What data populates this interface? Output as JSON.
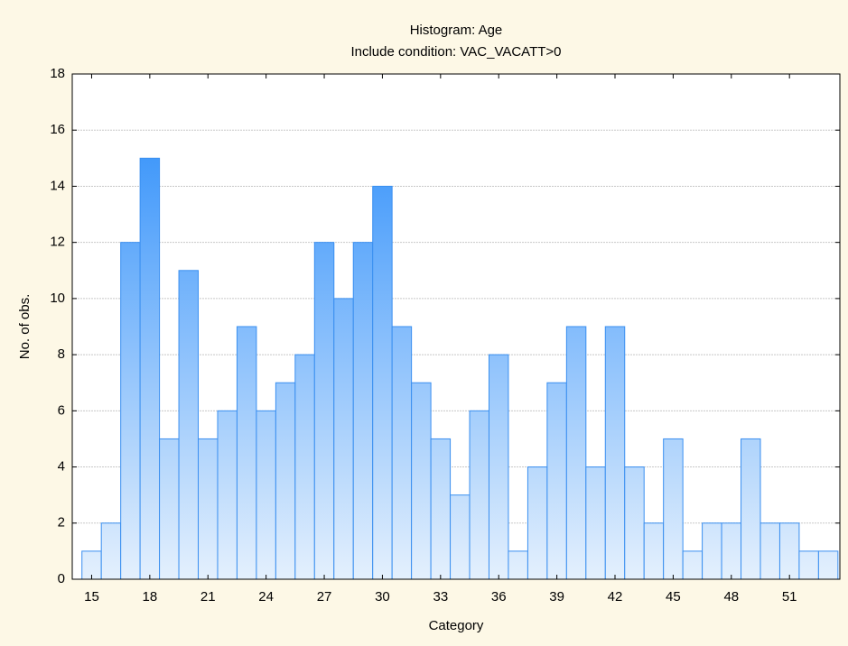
{
  "chart_data": {
    "type": "histogram",
    "title": "Histogram: Age",
    "subtitle": "Include condition: VAC_VACATT>0",
    "x_label": "Category",
    "y_label": "No. of obs.",
    "bins": [
      14.5,
      15.5,
      16.5,
      17.5,
      18.5,
      19.5,
      20.5,
      21.5,
      22.5,
      23.5,
      24.5,
      25.5,
      26.5,
      27.5,
      28.5,
      29.5,
      30.5,
      31.5,
      32.5,
      33.5,
      34.5,
      35.5,
      36.5,
      37.5,
      38.5,
      39.5,
      40.5,
      41.5,
      42.5,
      43.5,
      44.5,
      45.5,
      46.5,
      47.5,
      48.5,
      49.5,
      50.5,
      51.5,
      52.5,
      53.5
    ],
    "counts": [
      1,
      2,
      12,
      15,
      5,
      11,
      5,
      6,
      9,
      6,
      7,
      8,
      12,
      10,
      12,
      14,
      9,
      7,
      5,
      3,
      6,
      8,
      1,
      4,
      7,
      9,
      4,
      9,
      4,
      2,
      5,
      1,
      2,
      2,
      5,
      2,
      2,
      1,
      1
    ],
    "color": "#3a8ff0",
    "xlim": [
      14,
      53.6
    ],
    "xticks": [
      15,
      18,
      21,
      24,
      27,
      30,
      33,
      36,
      39,
      42,
      45,
      48,
      51
    ],
    "ylim": [
      0,
      18
    ],
    "yticks": [
      0,
      2,
      4,
      6,
      8,
      10,
      12,
      14,
      16,
      18
    ],
    "grid": true
  }
}
